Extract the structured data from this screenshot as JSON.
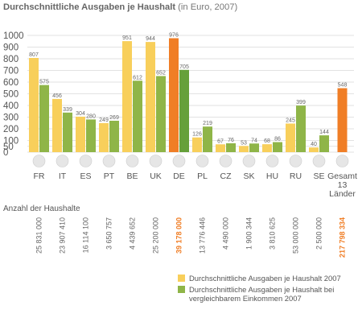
{
  "chart_data": {
    "type": "bar",
    "title": "Durchschnittliche Ausgaben je Haushalt",
    "subtitle": "(in Euro, 2007)",
    "ylim": [
      0,
      1000
    ],
    "yticks": [
      "0",
      "50",
      "100",
      "200",
      "300",
      "400",
      "500",
      "600",
      "700",
      "800",
      "900",
      "1000"
    ],
    "yticks_values": [
      0,
      50,
      100,
      200,
      300,
      400,
      500,
      600,
      700,
      800,
      900,
      1000
    ],
    "categories": [
      "FR",
      "IT",
      "ES",
      "PT",
      "BE",
      "UK",
      "DE",
      "PL",
      "CZ",
      "SK",
      "HU",
      "RU",
      "SE",
      "Gesamt\n13\nLänder"
    ],
    "series": [
      {
        "name": "Durchschnittliche Ausgaben je Haushalt 2007",
        "values": [
          807,
          456,
          304,
          249,
          951,
          944,
          976,
          126,
          67,
          53,
          68,
          245,
          40,
          548
        ]
      },
      {
        "name": "Durchschnittliche Ausgaben je Haushalt bei vergleichbarem Einkommen 2007",
        "values": [
          575,
          339,
          280,
          269,
          612,
          652,
          705,
          219,
          76,
          74,
          86,
          399,
          144,
          null
        ]
      }
    ],
    "highlight_categories": [
      "DE",
      "Gesamt\n13\nLänder"
    ],
    "households_label": "Anzahl der Haushalte",
    "households": [
      "25 831 000",
      "23 907 410",
      "16 114 100",
      "3 650 757",
      "4 439 652",
      "25 200 000",
      "39 178 000",
      "13 776 446",
      "4 490 000",
      "1 900 344",
      "3 810 625",
      "53 000 000",
      "2 500 000",
      "217 798 334"
    ],
    "colors": {
      "series1": "#f8cf5b",
      "series2": "#8fb548",
      "highlight1": "#f07e26",
      "highlight2": "#66a03a",
      "grid": "#d9d9d9",
      "axis_text": "#555555"
    },
    "flags": [
      "flag-france-icon",
      "flag-italy-icon",
      "flag-spain-icon",
      "flag-portugal-icon",
      "flag-belgium-icon",
      "flag-uk-icon",
      "flag-germany-icon",
      "flag-poland-icon",
      "flag-czech-icon",
      "flag-slovakia-icon",
      "flag-hungary-icon",
      "flag-russia-icon",
      "flag-sweden-icon",
      "flag-eu-icon"
    ]
  }
}
